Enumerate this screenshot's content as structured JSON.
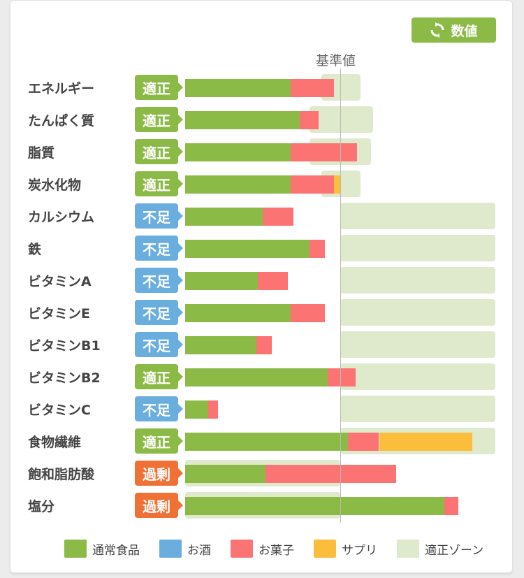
{
  "toggle": {
    "label": "数値",
    "icon": "refresh-icon"
  },
  "chart_data": {
    "type": "bar",
    "reference_label": "基準値",
    "x_unit": "percent of 基準値",
    "colors": {
      "food": "#8bbb46",
      "alcohol": "#6aaedf",
      "snacks": "#fb7373",
      "supplement": "#fbbd3c",
      "zone": "#dfe9cc",
      "ok": "#8bbb46",
      "low": "#6aaedf",
      "high": "#ef7136"
    },
    "status_labels": {
      "ok": "適正",
      "low": "不足",
      "high": "過剰"
    },
    "legend": [
      {
        "key": "food",
        "label": "通常食品"
      },
      {
        "key": "alcohol",
        "label": "お酒"
      },
      {
        "key": "snacks",
        "label": "お菓子"
      },
      {
        "key": "supplement",
        "label": "サプリ"
      },
      {
        "key": "zone",
        "label": "適正ゾーン"
      }
    ],
    "rows": [
      {
        "name": "エネルギー",
        "status": "ok",
        "zone": [
          88,
          113
        ],
        "food": 68,
        "alcohol": 0,
        "snacks": 28,
        "supplement": 0
      },
      {
        "name": "たんぱく質",
        "status": "ok",
        "zone": [
          80,
          121
        ],
        "food": 74,
        "alcohol": 0,
        "snacks": 12,
        "supplement": 0
      },
      {
        "name": "脂質",
        "status": "ok",
        "zone": [
          80,
          120
        ],
        "food": 68,
        "alcohol": 0,
        "snacks": 43,
        "supplement": 0
      },
      {
        "name": "炭水化物",
        "status": "ok",
        "zone": [
          88,
          113
        ],
        "food": 68,
        "alcohol": 0,
        "snacks": 28,
        "supplement": 4
      },
      {
        "name": "カルシウム",
        "status": "low",
        "zone": [
          100,
          200
        ],
        "food": 50,
        "alcohol": 0,
        "snacks": 20,
        "supplement": 0
      },
      {
        "name": "鉄",
        "status": "low",
        "zone": [
          100,
          200
        ],
        "food": 80,
        "alcohol": 0,
        "snacks": 10,
        "supplement": 0
      },
      {
        "name": "ビタミンA",
        "status": "low",
        "zone": [
          100,
          200
        ],
        "food": 47,
        "alcohol": 0,
        "snacks": 19,
        "supplement": 0
      },
      {
        "name": "ビタミンE",
        "status": "low",
        "zone": [
          100,
          200
        ],
        "food": 68,
        "alcohol": 0,
        "snacks": 22,
        "supplement": 0
      },
      {
        "name": "ビタミンB1",
        "status": "low",
        "zone": [
          100,
          200
        ],
        "food": 46,
        "alcohol": 0,
        "snacks": 10,
        "supplement": 0
      },
      {
        "name": "ビタミンB2",
        "status": "ok",
        "zone": [
          100,
          200
        ],
        "food": 92,
        "alcohol": 0,
        "snacks": 18,
        "supplement": 0
      },
      {
        "name": "ビタミンC",
        "status": "low",
        "zone": [
          100,
          200
        ],
        "food": 15,
        "alcohol": 0,
        "snacks": 6,
        "supplement": 0
      },
      {
        "name": "食物繊維",
        "status": "ok",
        "zone": [
          100,
          200
        ],
        "food": 105,
        "alcohol": 0,
        "snacks": 20,
        "supplement": 60
      },
      {
        "name": "飽和脂肪酸",
        "status": "high",
        "zone": [
          0,
          100
        ],
        "food": 52,
        "alcohol": 0,
        "snacks": 84,
        "supplement": 0
      },
      {
        "name": "塩分",
        "status": "high",
        "zone": [
          0,
          100
        ],
        "food": 167,
        "alcohol": 0,
        "snacks": 9,
        "supplement": 0
      }
    ]
  }
}
